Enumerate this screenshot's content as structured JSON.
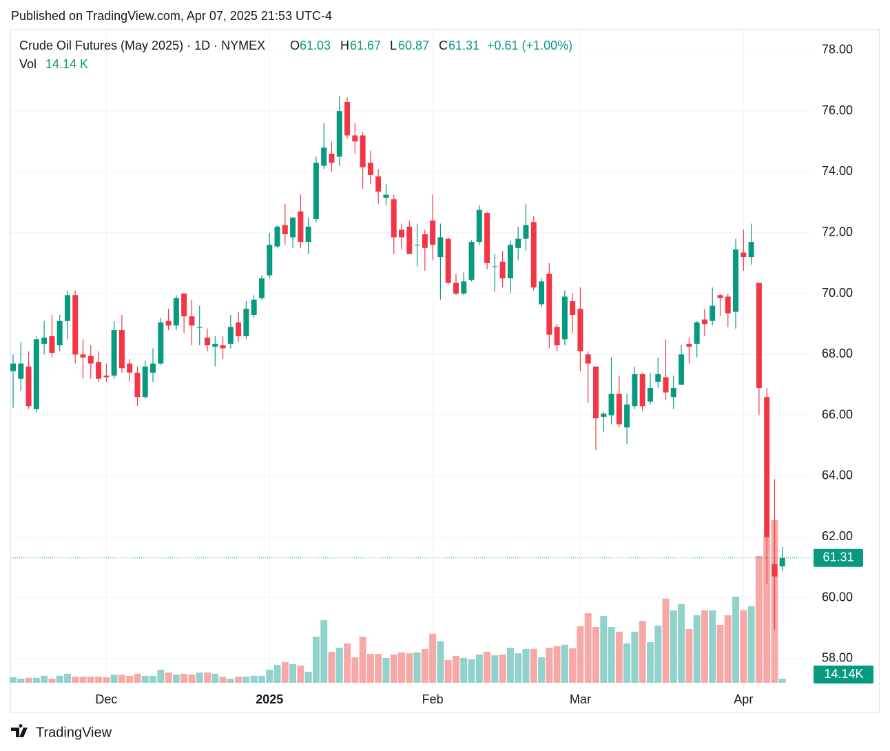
{
  "published": "Published on TradingView.com, Apr 07, 2025 21:53 UTC-4",
  "brand": "TradingView",
  "chart_data": {
    "type": "candlestick",
    "title": "Crude Oil Futures (May 2025) · 1D · NYMEX",
    "legend_labels": {
      "open": "O",
      "high": "H",
      "low": "L",
      "close": "C"
    },
    "change": "+0.61 (+1.00%)",
    "volume_title": "Vol",
    "volume_legend_label": "14.14 K",
    "volume_badge_label": "14.14K",
    "up_color": "#089981",
    "down_color": "#f23645",
    "up_volume_color": "#92d2cc",
    "down_volume_color": "#f7a9a7",
    "grid": true,
    "categories": [
      null,
      null,
      null,
      null,
      null,
      null,
      null,
      null,
      null,
      null,
      null,
      null,
      "Dec",
      null,
      null,
      null,
      null,
      null,
      null,
      null,
      null,
      null,
      null,
      null,
      null,
      null,
      null,
      null,
      null,
      null,
      null,
      null,
      null,
      "2025",
      null,
      null,
      null,
      null,
      null,
      null,
      null,
      null,
      null,
      null,
      null,
      null,
      null,
      null,
      null,
      null,
      null,
      null,
      null,
      null,
      "Feb",
      null,
      null,
      null,
      null,
      null,
      null,
      null,
      null,
      null,
      null,
      null,
      null,
      null,
      null,
      null,
      null,
      null,
      null,
      "Mar",
      null,
      null,
      null,
      null,
      null,
      null,
      null,
      null,
      null,
      null,
      null,
      null,
      null,
      null,
      null,
      null,
      null,
      null,
      null,
      null,
      "Apr",
      null,
      null,
      null,
      null,
      null
    ],
    "open": [
      67.45,
      67.2,
      67.6,
      66.2,
      68.35,
      68.6,
      68.3,
      69.1,
      69.95,
      68.0,
      67.95,
      67.75,
      67.3,
      67.3,
      68.8,
      67.7,
      67.4,
      66.6,
      67.4,
      67.7,
      69.1,
      68.95,
      70.0,
      69.25,
      68.9,
      68.55,
      68.25,
      68.3,
      68.35,
      69.05,
      68.6,
      69.3,
      69.85,
      70.6,
      71.55,
      72.25,
      71.85,
      72.7,
      71.7,
      72.45,
      74.2,
      74.6,
      74.5,
      76.3,
      75.2,
      75.2,
      74.3,
      73.85,
      73.15,
      73.1,
      72.1,
      72.2,
      71.6,
      71.95,
      72.4,
      71.2,
      71.8,
      70.35,
      70.0,
      70.45,
      71.7,
      72.65,
      70.9,
      71.05,
      70.5,
      71.5,
      71.8,
      72.35,
      69.65,
      70.65,
      68.9,
      68.5,
      69.75,
      69.5,
      68.0,
      67.6,
      65.95,
      66.0,
      66.7,
      65.6,
      66.3,
      67.35,
      66.45,
      67.1,
      67.25,
      66.6,
      67.0,
      68.35,
      68.35,
      69.15,
      69.1,
      69.95,
      69.9,
      69.4,
      71.35,
      71.2,
      70.35,
      66.6,
      61.1,
      61.03
    ],
    "high": [
      68,
      68.4,
      68.1,
      68.6,
      69.1,
      69.3,
      69.3,
      70.1,
      70.1,
      68.5,
      68.3,
      68.1,
      67.7,
      69.1,
      69.3,
      67.85,
      67.6,
      67.8,
      68.2,
      69.2,
      69.5,
      69.95,
      70.0,
      69.8,
      69.6,
      68.85,
      68.6,
      68.6,
      69.3,
      69.4,
      69.75,
      69.95,
      70.6,
      72.0,
      72.25,
      72.95,
      72.5,
      73.25,
      72.5,
      74.5,
      75.6,
      75.0,
      76.5,
      76.45,
      75.6,
      75.3,
      74.7,
      74.1,
      73.6,
      73.25,
      72.3,
      72.4,
      72.3,
      72.1,
      73.25,
      72.3,
      71.85,
      70.65,
      70.7,
      71.75,
      72.9,
      72.7,
      71.3,
      71.4,
      71.75,
      72.2,
      72.95,
      72.55,
      70.5,
      71.0,
      69.0,
      70.1,
      70.0,
      70.2,
      68.1,
      67.6,
      66.1,
      67.9,
      67.3,
      66.7,
      67.6,
      67.4,
      67.4,
      67.9,
      68.5,
      67.3,
      68.3,
      68.55,
      69.1,
      69.5,
      70.2,
      70.0,
      70.0,
      71.8,
      72.1,
      72.3,
      70.35,
      66.9,
      63.9,
      61.67
    ],
    "low": [
      66.25,
      66.8,
      66.2,
      66.1,
      68.0,
      67.9,
      68.1,
      68.5,
      67.7,
      67.2,
      67.2,
      67.1,
      67.1,
      67.2,
      67.4,
      67.1,
      66.3,
      66.55,
      67.1,
      67.65,
      68.8,
      68.8,
      68.7,
      68.3,
      68.3,
      68.1,
      67.6,
      67.85,
      68.2,
      68.4,
      68.5,
      69.2,
      69.8,
      70.5,
      71.5,
      71.6,
      71.5,
      71.5,
      71.3,
      72.35,
      74.1,
      74.0,
      74.2,
      75.1,
      74.6,
      73.45,
      73.6,
      72.95,
      72.9,
      71.3,
      71.45,
      71.3,
      70.9,
      70.75,
      71.1,
      69.8,
      70.3,
      69.95,
      69.95,
      70.4,
      71.6,
      70.8,
      70.05,
      70.2,
      70.0,
      71.1,
      71.4,
      70.1,
      69.55,
      68.2,
      68.1,
      68.3,
      68.7,
      67.45,
      66.4,
      64.85,
      65.45,
      65.7,
      65.6,
      65.05,
      66.2,
      66.15,
      66.35,
      66.9,
      66.5,
      66.2,
      67.0,
      67.7,
      67.9,
      68.6,
      68.95,
      69.25,
      68.9,
      68.85,
      70.75,
      70.95,
      66.0,
      60.45,
      58.95,
      60.87
    ],
    "close": [
      67.7,
      67.7,
      66.3,
      68.5,
      68.55,
      68.05,
      69.1,
      69.95,
      68.0,
      67.9,
      67.7,
      67.2,
      67.25,
      68.8,
      67.55,
      67.4,
      66.6,
      67.6,
      67.7,
      69.05,
      68.95,
      69.85,
      69.25,
      68.95,
      68.9,
      68.3,
      68.35,
      68.2,
      68.9,
      68.6,
      69.5,
      69.8,
      70.5,
      71.6,
      72.2,
      71.95,
      72.5,
      71.7,
      72.2,
      74.3,
      74.8,
      74.3,
      76.0,
      75.2,
      75.0,
      74.15,
      73.9,
      73.35,
      73.25,
      71.85,
      71.85,
      71.3,
      71.6,
      71.5,
      71.6,
      71.85,
      70.35,
      70.0,
      70.4,
      71.7,
      72.75,
      71.0,
      70.9,
      70.5,
      71.6,
      71.8,
      72.25,
      70.2,
      70.4,
      68.65,
      68.3,
      69.9,
      69.3,
      68.1,
      67.7,
      65.9,
      66.05,
      66.7,
      65.7,
      66.35,
      67.35,
      66.3,
      66.9,
      67.35,
      66.75,
      66.9,
      68.0,
      68.25,
      69.05,
      69.0,
      69.6,
      69.85,
      69.35,
      71.45,
      71.2,
      71.7,
      66.9,
      61.99,
      60.7,
      61.31
    ],
    "volume": [
      19,
      14,
      17,
      17,
      24,
      14,
      24,
      31,
      21,
      21,
      21,
      21,
      19,
      28,
      28,
      24,
      31,
      24,
      24,
      45,
      35,
      28,
      31,
      28,
      35,
      35,
      31,
      21,
      14,
      21,
      21,
      24,
      24,
      45,
      61,
      71,
      64,
      59,
      38,
      158,
      215,
      106,
      120,
      135,
      87,
      158,
      99,
      99,
      85,
      97,
      104,
      101,
      104,
      116,
      168,
      142,
      78,
      92,
      85,
      80,
      97,
      106,
      94,
      97,
      120,
      101,
      116,
      116,
      87,
      120,
      125,
      130,
      118,
      194,
      238,
      191,
      229,
      191,
      175,
      135,
      175,
      212,
      139,
      196,
      288,
      248,
      269,
      184,
      231,
      248,
      248,
      198,
      231,
      295,
      248,
      262,
      434,
      498,
      557,
      14.14
    ],
    "volume_lim": [
      0,
      1000
    ],
    "ylim": [
      56.23,
      78.7
    ],
    "yticks": [
      {
        "value": 58,
        "label": "58.00"
      },
      {
        "value": 60,
        "label": "60.00"
      },
      {
        "value": 62,
        "label": "62.00"
      },
      {
        "value": 64,
        "label": "64.00"
      },
      {
        "value": 66,
        "label": "66.00"
      },
      {
        "value": 68,
        "label": "68.00"
      },
      {
        "value": 70,
        "label": "70.00"
      },
      {
        "value": 72,
        "label": "72.00"
      },
      {
        "value": 74,
        "label": "74.00"
      },
      {
        "value": 76,
        "label": "76.00"
      },
      {
        "value": 78,
        "label": "78.00"
      }
    ]
  }
}
